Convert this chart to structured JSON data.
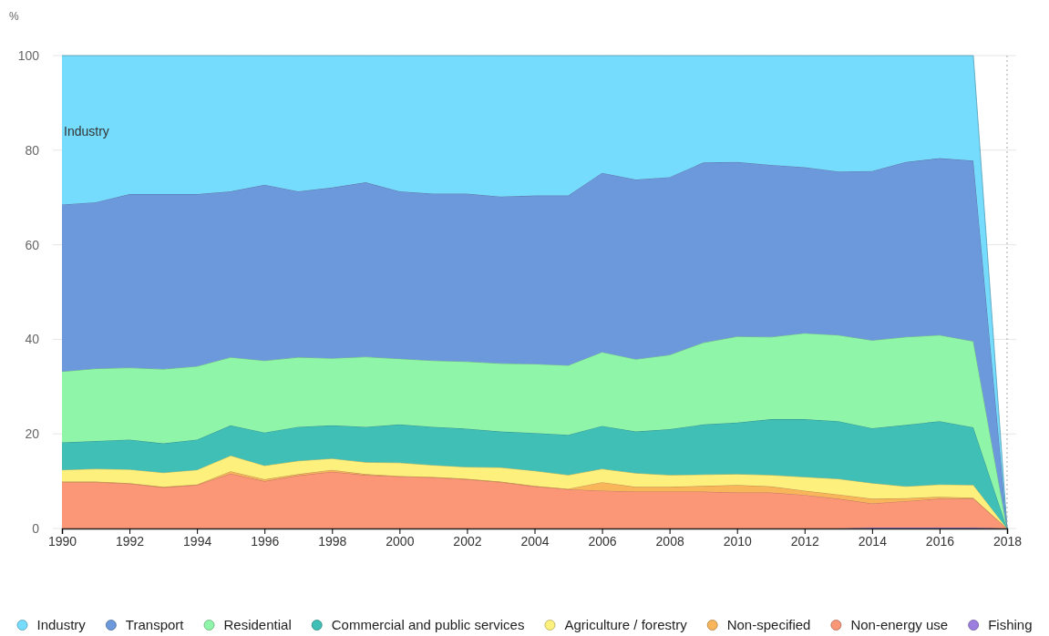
{
  "chart_data": {
    "type": "area",
    "stacked": true,
    "ylabel": "%",
    "x": [
      1990,
      1991,
      1992,
      1993,
      1994,
      1995,
      1996,
      1997,
      1998,
      1999,
      2000,
      2001,
      2002,
      2003,
      2004,
      2005,
      2006,
      2007,
      2008,
      2009,
      2010,
      2011,
      2012,
      2013,
      2014,
      2015,
      2016,
      2017,
      2018
    ],
    "xlim": [
      1990,
      2018
    ],
    "xticks": [
      1990,
      1992,
      1994,
      1996,
      1998,
      2000,
      2002,
      2004,
      2006,
      2008,
      2010,
      2012,
      2014,
      2016,
      2018
    ],
    "ylim": [
      0,
      100
    ],
    "yticks": [
      0,
      20,
      40,
      60,
      80,
      100
    ],
    "grid": "y",
    "legend": "bottom",
    "ref_lines": [
      {
        "axis": "x",
        "value": 2018,
        "line_style": "dotted",
        "color": "#aaaaaa"
      }
    ],
    "annotations": [
      {
        "text": "Industry",
        "x": 1990,
        "y": 84
      }
    ],
    "series": [
      {
        "name": "Fishing",
        "color": "#9b7ee0",
        "values": [
          0,
          0,
          0,
          0,
          0,
          0,
          0,
          0,
          0,
          0,
          0,
          0,
          0,
          0,
          0,
          0,
          0,
          0,
          0,
          0,
          0,
          0,
          0,
          0,
          0.2,
          0.2,
          0.2,
          0.2,
          0
        ]
      },
      {
        "name": "Non-energy use",
        "color": "#fb9677",
        "values": [
          9.8,
          9.8,
          9.5,
          8.7,
          9.2,
          11.6,
          10,
          11.2,
          12,
          11.3,
          11,
          10.8,
          10.4,
          9.8,
          8.9,
          8.3,
          8,
          7.8,
          7.8,
          7.8,
          7.6,
          7.6,
          7.1,
          6.3,
          5.1,
          5.6,
          6.1,
          6.1,
          0
        ]
      },
      {
        "name": "Non-specified",
        "color": "#f8b55a",
        "values": [
          0.1,
          0.1,
          0.1,
          0.1,
          0.1,
          0.5,
          0.4,
          0.3,
          0.4,
          0.2,
          0.1,
          0.1,
          0.1,
          0.1,
          0.1,
          0.1,
          1.8,
          1.0,
          1.0,
          1.2,
          1.6,
          1.3,
          0.9,
          0.9,
          1.0,
          0.6,
          0.4,
          0.2,
          0
        ]
      },
      {
        "name": "Agriculture / forestry",
        "color": "#fdf07c",
        "values": [
          2.5,
          2.7,
          2.9,
          3.0,
          3.1,
          3.3,
          2.9,
          2.8,
          2.4,
          2.5,
          2.8,
          2.5,
          2.5,
          3.0,
          3.2,
          2.9,
          2.8,
          2.9,
          2.5,
          2.4,
          2.3,
          2.4,
          2.9,
          3.3,
          3.3,
          2.5,
          2.6,
          2.7,
          0
        ]
      },
      {
        "name": "Commercial and public services",
        "color": "#3fbfb5",
        "values": [
          5.8,
          5.9,
          6.3,
          6.2,
          6.4,
          6.4,
          7.0,
          7.2,
          7.0,
          7.5,
          8.1,
          8.1,
          8.1,
          7.6,
          8.0,
          8.5,
          9.1,
          8.8,
          9.7,
          10.6,
          10.9,
          11.8,
          12.2,
          12.2,
          11.6,
          13.0,
          13.4,
          12.2,
          0
        ]
      },
      {
        "name": "Residential",
        "color": "#8ff5a8",
        "values": [
          15.0,
          15.3,
          15.2,
          15.7,
          15.5,
          14.4,
          15.2,
          14.7,
          14.2,
          14.8,
          13.9,
          14.0,
          14.2,
          14.4,
          14.6,
          14.7,
          15.6,
          15.3,
          15.7,
          17.3,
          18.2,
          17.4,
          18.2,
          18.2,
          18.6,
          18.6,
          18.2,
          18.2,
          0
        ]
      },
      {
        "name": "Transport",
        "color": "#6b99db",
        "values": [
          35.3,
          35.2,
          36.7,
          37.0,
          36.4,
          35.1,
          37.2,
          35.1,
          36.1,
          36.9,
          35.4,
          35.3,
          35.5,
          35.3,
          35.6,
          35.9,
          37.9,
          38.0,
          37.6,
          38.1,
          36.9,
          36.4,
          35.1,
          34.6,
          35.8,
          37.0,
          37.4,
          38.2,
          0
        ]
      },
      {
        "name": "Industry",
        "color": "#76dcfe",
        "values": [
          31.5,
          31,
          29.3,
          29.3,
          29.3,
          28.7,
          27.3,
          28.7,
          27.9,
          26.8,
          28.7,
          29.2,
          29.2,
          29.8,
          29.6,
          29.6,
          24.8,
          26.2,
          25.7,
          22.6,
          22.5,
          23.1,
          23.6,
          24.5,
          24.4,
          22.5,
          21.7,
          22.2,
          0
        ]
      }
    ]
  }
}
